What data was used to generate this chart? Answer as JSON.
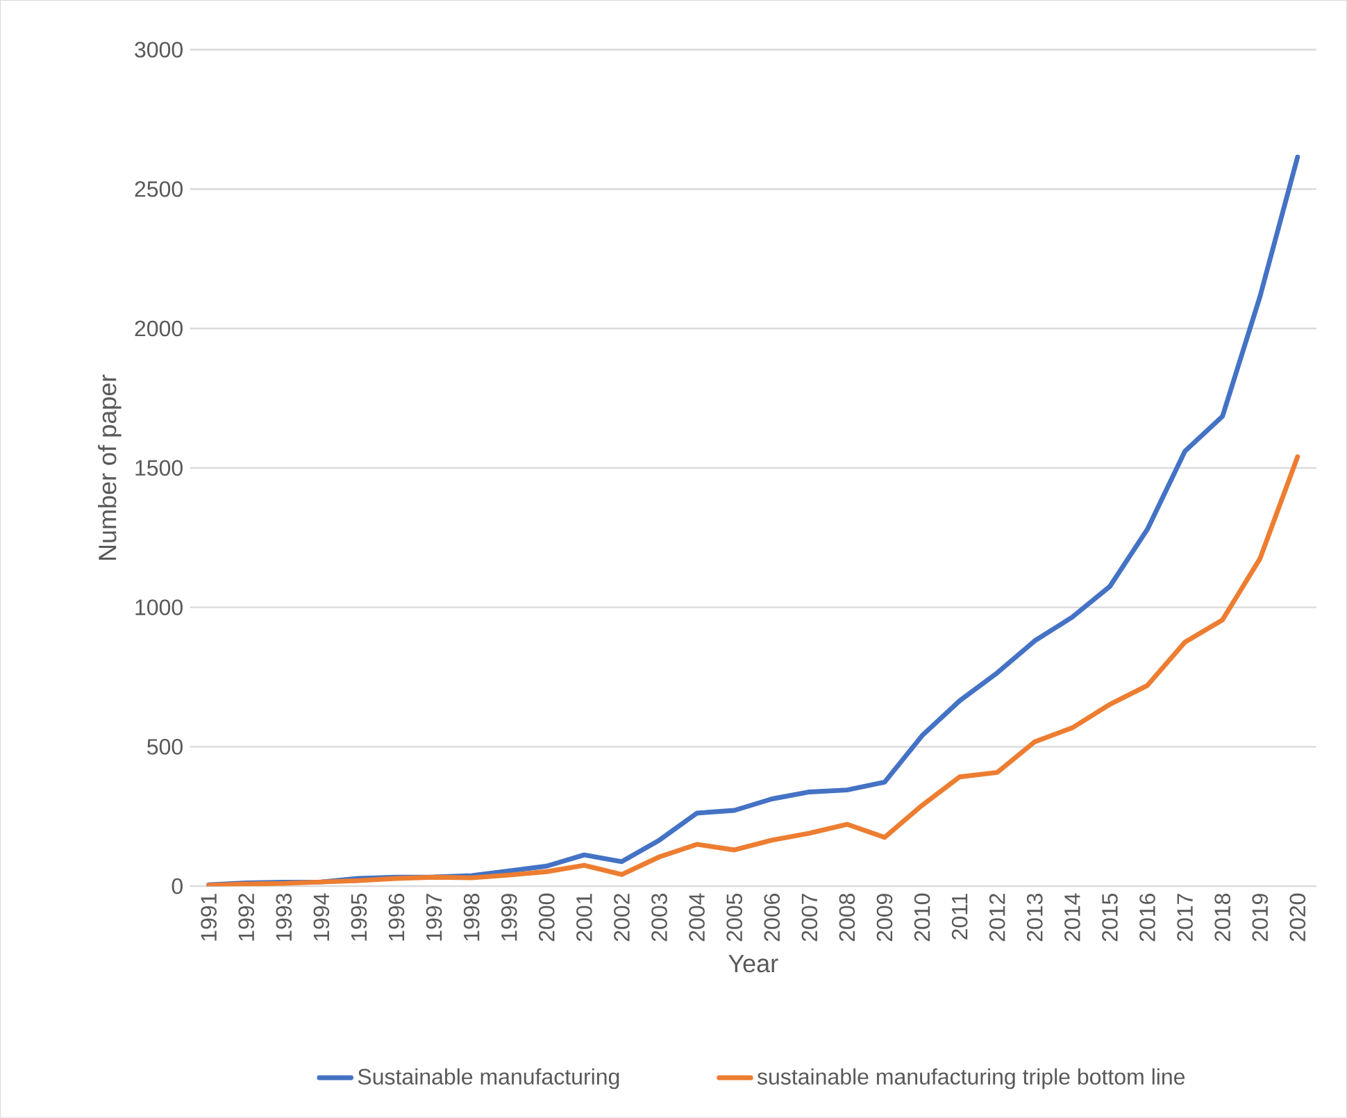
{
  "chart_data": {
    "type": "line",
    "xlabel": "Year",
    "ylabel": "Number of paper",
    "categories": [
      "1991",
      "1992",
      "1993",
      "1994",
      "1995",
      "1996",
      "1997",
      "1998",
      "1999",
      "2000",
      "2001",
      "2002",
      "2003",
      "2004",
      "2005",
      "2006",
      "2007",
      "2008",
      "2009",
      "2010",
      "2011",
      "2012",
      "2013",
      "2014",
      "2015",
      "2016",
      "2017",
      "2018",
      "2019",
      "2020"
    ],
    "series": [
      {
        "name": "Sustainable manufacturing",
        "color": "#4472c4",
        "values": [
          5,
          12,
          14,
          15,
          28,
          32,
          33,
          38,
          55,
          72,
          112,
          88,
          165,
          262,
          272,
          313,
          338,
          345,
          373,
          540,
          665,
          765,
          880,
          965,
          1075,
          1280,
          1560,
          1685,
          2115,
          2615
        ]
      },
      {
        "name": "sustainable manufacturing triple bottom line",
        "color": "#ed7d31",
        "values": [
          3,
          8,
          10,
          15,
          20,
          28,
          32,
          30,
          40,
          52,
          75,
          42,
          105,
          150,
          130,
          165,
          190,
          222,
          175,
          290,
          392,
          408,
          518,
          568,
          652,
          720,
          875,
          955,
          1175,
          1540
        ]
      }
    ],
    "ylim": [
      0,
      3000
    ],
    "yticks": [
      0,
      500,
      1000,
      1500,
      2000,
      2500,
      3000
    ],
    "grid": "y",
    "legend": "bottom",
    "marker": "none",
    "line_style": "solid"
  }
}
